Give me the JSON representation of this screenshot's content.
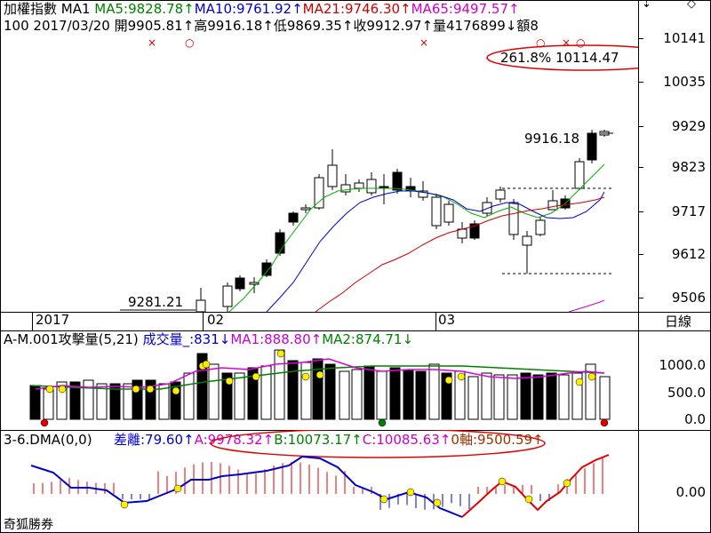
{
  "header": {
    "row1": [
      {
        "text": "加權指數 MA1 ",
        "color": "#000000"
      },
      {
        "text": "MA5:9828.78↑",
        "color": "#008000"
      },
      {
        "text": "MA10:9761.92↑",
        "color": "#0000cc"
      },
      {
        "text": "MA21:9746.30↑",
        "color": "#cc0000"
      },
      {
        "text": "MA65:9497.57↑",
        "color": "#cc00cc"
      }
    ],
    "row2": "100 2017/03/20 開9905.81↑高9916.18↑低9869.35↑收9912.97↑量4176899↓額8",
    "fib_label": "261.8% 10114.47",
    "last_high_label": "9916.18",
    "prior_low_label": "9281.21"
  },
  "top_right_icons": {
    "scroll_down": "⇣",
    "resize": "◇"
  },
  "price_axis": {
    "ticks": [
      "10141",
      "10035",
      "9929",
      "9823",
      "9717",
      "9612",
      "9506"
    ]
  },
  "date_axis": {
    "labels": [
      "2017",
      "02",
      "03"
    ],
    "right_label": "日線"
  },
  "volume_panel": {
    "header": [
      {
        "text": "A-M.001攻擊量(5,21) ",
        "color": "#000000"
      },
      {
        "text": "成交量_:831↓",
        "color": "#0000cc"
      },
      {
        "text": "MA1:888.80↑",
        "color": "#cc00cc"
      },
      {
        "text": "MA2:874.71↓",
        "color": "#008000"
      }
    ],
    "ticks": [
      "1000.0",
      "500.0",
      "0.0"
    ]
  },
  "dma_panel": {
    "header_left": {
      "text": "3-6.DMA(0,0) ",
      "color": "#000000"
    },
    "header_items": [
      {
        "text": "差離:79.60↑",
        "color": "#0000cc"
      },
      {
        "text": "A:9978.32↑",
        "color": "#cc00cc"
      },
      {
        "text": "B:10073.17↑",
        "color": "#008000"
      },
      {
        "text": "C:10085.63↑",
        "color": "#cc00cc"
      },
      {
        "text": "0軸:9500.59↑",
        "color": "#993300"
      }
    ],
    "tick": "0.00",
    "footer": "奇狐勝券"
  },
  "colors": {
    "bg": "#ffffff",
    "red": "#cc0000",
    "green": "#008000",
    "blue": "#0000cc",
    "magenta": "#cc00cc",
    "ellipse": "#e00000"
  }
}
